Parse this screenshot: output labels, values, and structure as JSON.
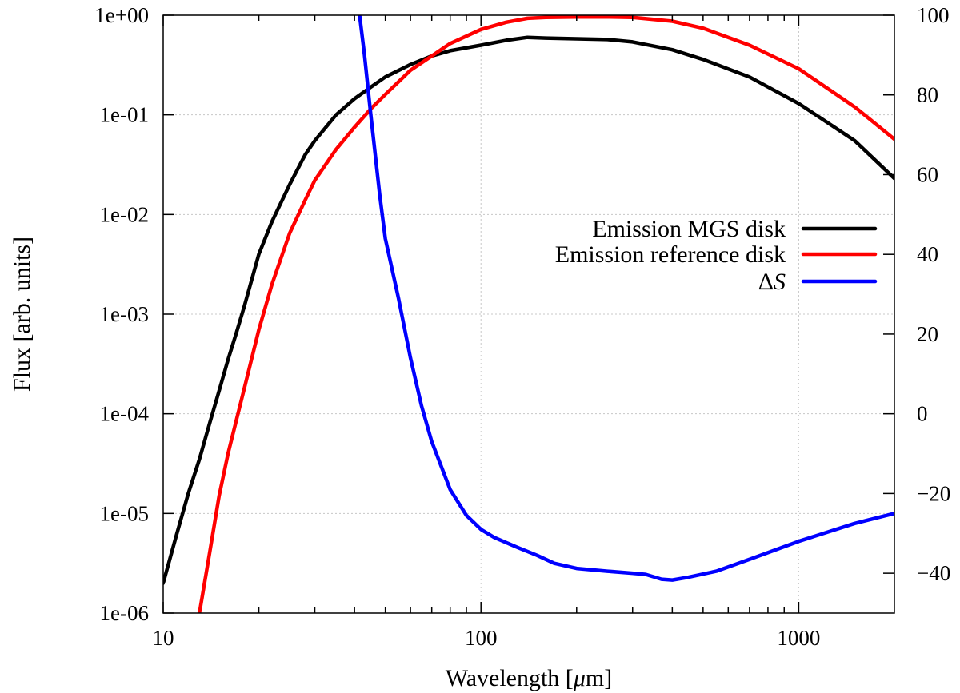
{
  "chart_data": {
    "type": "line",
    "title": "",
    "xlabel": "Wavelength [μm]",
    "xlabel_parts": {
      "pre": "Wavelength [",
      "mu": "μ",
      "post": "m]"
    },
    "ylabel": "Flux [arb. units]",
    "y2label": "",
    "xscale": "log",
    "yscale": "log",
    "xlim": [
      10,
      2000
    ],
    "ylim": [
      1e-06,
      1
    ],
    "y2lim": [
      -50,
      100
    ],
    "xticks": [
      {
        "value": 10,
        "label": "10"
      },
      {
        "value": 100,
        "label": "100"
      },
      {
        "value": 1000,
        "label": "1000"
      }
    ],
    "yticks": [
      {
        "value": 1,
        "label": "1e+00"
      },
      {
        "value": 0.1,
        "label": "1e-01"
      },
      {
        "value": 0.01,
        "label": "1e-02"
      },
      {
        "value": 0.001,
        "label": "1e-03"
      },
      {
        "value": 0.0001,
        "label": "1e-04"
      },
      {
        "value": 1e-05,
        "label": "1e-05"
      },
      {
        "value": 1e-06,
        "label": "1e-06"
      }
    ],
    "y2ticks": [
      {
        "value": 100,
        "label": "100"
      },
      {
        "value": 80,
        "label": "80"
      },
      {
        "value": 60,
        "label": "60"
      },
      {
        "value": 40,
        "label": "40"
      },
      {
        "value": 20,
        "label": "20"
      },
      {
        "value": 0,
        "label": "0"
      },
      {
        "value": -20,
        "label": "−20"
      },
      {
        "value": -40,
        "label": "−40"
      }
    ],
    "legend_position": "right",
    "series": [
      {
        "name": "Emission MGS disk",
        "label": "Emission MGS disk",
        "color": "#000000",
        "axis": "left",
        "x": [
          10,
          11,
          12,
          13,
          14,
          15,
          16,
          17,
          18,
          20,
          22,
          25,
          28,
          30,
          35,
          40,
          45,
          50,
          60,
          70,
          80,
          100,
          120,
          140,
          160,
          200,
          250,
          300,
          400,
          500,
          700,
          1000,
          1500,
          2000
        ],
        "y": [
          2e-06,
          6e-06,
          1.6e-05,
          3.5e-05,
          8e-05,
          0.00017,
          0.00035,
          0.00065,
          0.0012,
          0.004,
          0.0085,
          0.02,
          0.04,
          0.055,
          0.1,
          0.145,
          0.19,
          0.24,
          0.32,
          0.39,
          0.44,
          0.5,
          0.56,
          0.6,
          0.59,
          0.58,
          0.57,
          0.54,
          0.45,
          0.36,
          0.24,
          0.13,
          0.055,
          0.023
        ]
      },
      {
        "name": "Emission reference disk",
        "label": "Emission reference disk",
        "color": "#ff0000",
        "axis": "left",
        "x": [
          13,
          14,
          15,
          16,
          18,
          20,
          22,
          25,
          28,
          30,
          35,
          40,
          45,
          50,
          60,
          70,
          80,
          100,
          120,
          140,
          160,
          200,
          250,
          300,
          400,
          500,
          700,
          1000,
          1500,
          2000
        ],
        "y": [
          1e-06,
          4e-06,
          1.5e-05,
          4e-05,
          0.00018,
          0.0007,
          0.002,
          0.0065,
          0.014,
          0.022,
          0.045,
          0.075,
          0.115,
          0.16,
          0.28,
          0.39,
          0.52,
          0.72,
          0.85,
          0.93,
          0.95,
          0.96,
          0.96,
          0.95,
          0.87,
          0.74,
          0.5,
          0.29,
          0.12,
          0.057
        ]
      },
      {
        "name": "ΔS",
        "label_parts": {
          "delta": "Δ",
          "sym": "S"
        },
        "color": "#0000ff",
        "axis": "right",
        "x": [
          41.5,
          43,
          45,
          48,
          50,
          55,
          60,
          65,
          70,
          80,
          90,
          100,
          110,
          130,
          150,
          170,
          200,
          250,
          300,
          330,
          370,
          400,
          450,
          550,
          700,
          1000,
          1500,
          2000
        ],
        "y": [
          100,
          90,
          75,
          55,
          44,
          29,
          14,
          2,
          -7,
          -19,
          -25.5,
          -29,
          -31,
          -33.5,
          -35.5,
          -37.5,
          -38.8,
          -39.5,
          -40,
          -40.3,
          -41.5,
          -41.7,
          -41,
          -39.5,
          -36.5,
          -32,
          -27.5,
          -25
        ]
      }
    ]
  }
}
